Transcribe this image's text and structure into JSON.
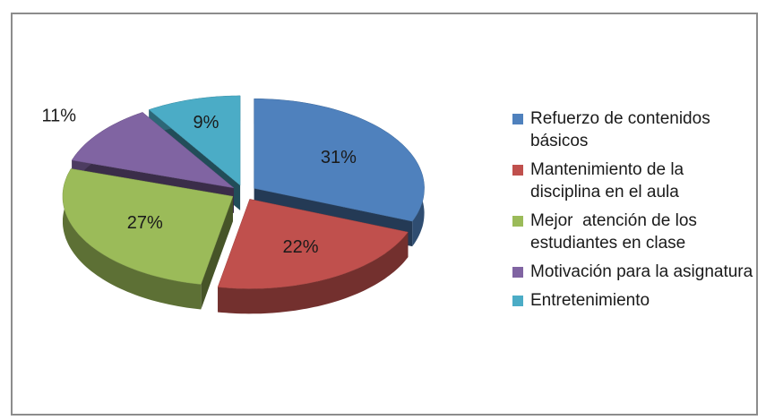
{
  "chart_data": {
    "type": "pie",
    "categories": [
      "Refuerzo de contenidos básicos",
      "Mantenimiento de la disciplina en el aula",
      "Mejor  atención de los estudiantes en clase",
      "Motivación para la asignatura",
      "Entretenimiento"
    ],
    "values": [
      31,
      22,
      27,
      11,
      9
    ],
    "value_labels": [
      "31%",
      "22%",
      "27%",
      "11%",
      "9%"
    ],
    "colors": [
      "#4f81bd",
      "#c0504d",
      "#9bbb59",
      "#8064a2",
      "#4bacc6"
    ],
    "legend": "right"
  }
}
